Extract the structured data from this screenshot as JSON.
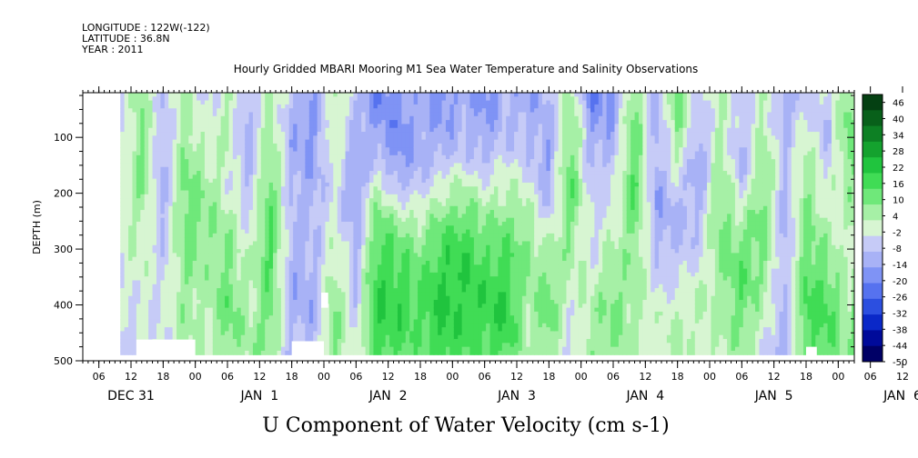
{
  "header": {
    "longitude": "LONGITUDE : 122W(-122)",
    "latitude": "LATITUDE : 36.8N",
    "year": "YEAR : 2011"
  },
  "chart_data": {
    "type": "heatmap",
    "title": "Hourly Gridded MBARI Mooring M1 Sea Water Temperature and Salinity Observations",
    "xlabel": "U Component of Water Velocity (cm s-1)",
    "ylabel": "DEPTH (m)",
    "x_units": "hours since Dec 31 00:00, 2011",
    "xlim": [
      3,
      147
    ],
    "ylim": [
      500,
      20
    ],
    "y_ticks": [
      100,
      200,
      300,
      400,
      500
    ],
    "x_tick_labels": [
      "06",
      "12",
      "18",
      "00",
      "06",
      "12",
      "18",
      "00",
      "06",
      "12",
      "18",
      "00",
      "06",
      "12",
      "18",
      "00",
      "06",
      "12",
      "18",
      "00",
      "06",
      "12",
      "18",
      "00",
      "06",
      "12",
      "18",
      "00"
    ],
    "x_tick_hours": [
      6,
      12,
      18,
      24,
      30,
      36,
      42,
      48,
      54,
      60,
      66,
      72,
      78,
      84,
      90,
      96,
      102,
      108,
      114,
      120,
      126,
      132,
      138,
      144,
      150,
      156,
      162,
      168
    ],
    "day_labels": [
      "DEC 31",
      "JAN  1",
      "JAN  2",
      "JAN  3",
      "JAN  4",
      "JAN  5",
      "JAN  6"
    ],
    "day_label_hours": [
      12,
      36,
      60,
      84,
      108,
      132,
      156
    ],
    "data_x_range": [
      10,
      170
    ],
    "data_y_range": [
      20,
      485
    ],
    "colorbar": {
      "levels": [
        -50,
        -44,
        -38,
        -32,
        -26,
        -20,
        -14,
        -8,
        -2,
        4,
        10,
        16,
        22,
        28,
        34,
        40,
        46
      ],
      "tick_labels": [
        "46",
        "40",
        "34",
        "28",
        "22",
        "16",
        "10",
        "4",
        "-2",
        "-8",
        "-14",
        "-20",
        "-26",
        "-32",
        "-38",
        "-44",
        "-50"
      ],
      "colors_low_to_high": [
        "#000066",
        "#000a9a",
        "#0a28c8",
        "#2c4fe0",
        "#5672ef",
        "#7f93f5",
        "#a8b2f6",
        "#c6cbf7",
        "#d7f5d2",
        "#a6f0a6",
        "#6fe87a",
        "#40dc55",
        "#20c43e",
        "#14a22e",
        "#0d8024",
        "#08601a",
        "#044012"
      ]
    },
    "field_sample_hours": [
      10,
      14,
      18,
      22,
      26,
      30,
      34,
      38,
      42,
      46,
      50,
      54,
      58,
      62,
      66,
      70,
      74,
      78,
      82,
      86,
      90,
      94,
      98,
      102,
      106,
      110,
      114,
      118,
      122,
      126,
      130,
      134,
      138,
      142,
      146,
      150,
      154,
      158,
      162,
      166,
      170
    ],
    "field_sample_depths": [
      20,
      75,
      130,
      185,
      240,
      295,
      350,
      405,
      460,
      485
    ],
    "field_values": [
      [
        -6,
        -4,
        -2,
        0,
        2,
        0,
        -2,
        -4,
        -4,
        -4
      ],
      [
        8,
        10,
        12,
        10,
        6,
        4,
        2,
        0,
        -2,
        -4
      ],
      [
        -6,
        -8,
        -10,
        -10,
        -8,
        -6,
        -4,
        -2,
        -2,
        -2
      ],
      [
        6,
        8,
        10,
        12,
        14,
        12,
        10,
        8,
        6,
        6
      ],
      [
        -4,
        -2,
        4,
        8,
        10,
        8,
        6,
        4,
        2,
        2
      ],
      [
        4,
        6,
        2,
        0,
        6,
        10,
        12,
        14,
        12,
        10
      ],
      [
        -10,
        -12,
        -10,
        -8,
        -4,
        0,
        2,
        4,
        6,
        6
      ],
      [
        8,
        6,
        10,
        14,
        16,
        18,
        16,
        14,
        12,
        10
      ],
      [
        -8,
        -10,
        -12,
        -10,
        -8,
        -10,
        -12,
        -10,
        -8,
        -8
      ],
      [
        -14,
        -16,
        -14,
        -12,
        -10,
        -8,
        -10,
        -12,
        -10,
        -10
      ],
      [
        6,
        4,
        2,
        0,
        -2,
        4,
        8,
        10,
        12,
        10
      ],
      [
        -6,
        -10,
        -12,
        -14,
        -12,
        -10,
        -8,
        -6,
        -4,
        -4
      ],
      [
        -20,
        -14,
        -10,
        4,
        12,
        18,
        20,
        22,
        20,
        18
      ],
      [
        -14,
        -18,
        -16,
        -10,
        6,
        14,
        18,
        20,
        18,
        16
      ],
      [
        -10,
        -12,
        -10,
        -6,
        2,
        10,
        14,
        16,
        14,
        12
      ],
      [
        -18,
        -14,
        -10,
        2,
        10,
        18,
        22,
        24,
        22,
        20
      ],
      [
        -12,
        -10,
        -6,
        4,
        14,
        20,
        22,
        20,
        18,
        16
      ],
      [
        -16,
        -14,
        -10,
        0,
        8,
        14,
        18,
        20,
        18,
        16
      ],
      [
        -10,
        -8,
        -4,
        4,
        10,
        16,
        20,
        22,
        20,
        18
      ],
      [
        -14,
        -10,
        -6,
        0,
        6,
        10,
        8,
        6,
        4,
        4
      ],
      [
        -8,
        -10,
        -14,
        -12,
        -6,
        4,
        10,
        14,
        12,
        10
      ],
      [
        8,
        12,
        14,
        16,
        12,
        8,
        4,
        0,
        -4,
        -4
      ],
      [
        -20,
        -14,
        -10,
        -6,
        -4,
        -2,
        2,
        6,
        8,
        8
      ],
      [
        -16,
        -12,
        -8,
        -4,
        0,
        4,
        8,
        12,
        10,
        8
      ],
      [
        10,
        14,
        16,
        18,
        14,
        10,
        8,
        6,
        4,
        4
      ],
      [
        -10,
        -12,
        -10,
        -14,
        -12,
        -8,
        -4,
        0,
        2,
        2
      ],
      [
        14,
        10,
        6,
        -4,
        -10,
        -8,
        -4,
        2,
        6,
        6
      ],
      [
        -6,
        -10,
        -14,
        -12,
        -8,
        -4,
        0,
        4,
        2,
        2
      ],
      [
        4,
        6,
        8,
        10,
        12,
        10,
        8,
        6,
        4,
        4
      ],
      [
        -4,
        -8,
        -10,
        -6,
        4,
        12,
        16,
        14,
        10,
        8
      ],
      [
        2,
        6,
        10,
        12,
        14,
        12,
        8,
        4,
        0,
        -2
      ],
      [
        -12,
        -10,
        -8,
        -10,
        -12,
        -10,
        -8,
        -10,
        -12,
        -12
      ],
      [
        -6,
        0,
        6,
        10,
        12,
        14,
        16,
        18,
        16,
        14
      ],
      [
        -4,
        -8,
        -6,
        -2,
        2,
        8,
        14,
        18,
        16,
        14
      ],
      [
        10,
        14,
        12,
        8,
        4,
        0,
        2,
        6,
        8,
        8
      ],
      [
        -4,
        -2,
        4,
        10,
        14,
        16,
        20,
        22,
        18,
        16
      ],
      [
        6,
        10,
        14,
        16,
        18,
        16,
        14,
        12,
        10,
        10
      ],
      [
        -2,
        -4,
        -2,
        4,
        10,
        14,
        16,
        14,
        12,
        10
      ],
      [
        8,
        14,
        18,
        16,
        14,
        12,
        10,
        8,
        6,
        6
      ],
      [
        -4,
        -6,
        -4,
        0,
        6,
        10,
        12,
        10,
        8,
        8
      ],
      [
        -8,
        -10,
        -8,
        -4,
        2,
        6,
        8,
        6,
        4,
        4
      ]
    ],
    "missing_regions": [
      {
        "x": [
          13,
          24
        ],
        "y": [
          462,
          500
        ]
      },
      {
        "x": [
          42,
          48
        ],
        "y": [
          465,
          500
        ]
      },
      {
        "x": [
          47.5,
          48.8
        ],
        "y": [
          378,
          405
        ]
      },
      {
        "x": [
          138,
          140
        ],
        "y": [
          475,
          500
        ]
      },
      {
        "x": [
          153,
          157
        ],
        "y": [
          455,
          500
        ]
      },
      {
        "x": [
          157,
          164
        ],
        "y": [
          440,
          500
        ]
      },
      {
        "x": [
          164,
          168
        ],
        "y": [
          470,
          500
        ]
      },
      {
        "x": [
          172,
          176
        ],
        "y": [
          450,
          500
        ]
      }
    ]
  }
}
